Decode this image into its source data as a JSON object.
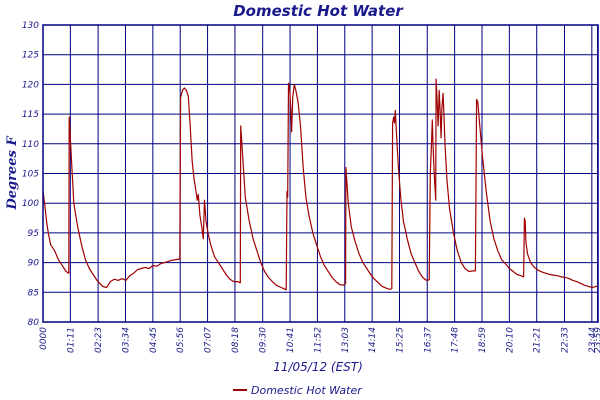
{
  "colors": {
    "series": "#a00000",
    "grid": "#000080",
    "text": "#1a1a8c"
  },
  "chart_data": {
    "type": "line",
    "title": "Domestic Hot Water",
    "xlabel": "11/05/12 (EST)",
    "ylabel": "Degrees F",
    "ylim": [
      80,
      130
    ],
    "yticks": [
      80,
      85,
      90,
      95,
      100,
      105,
      110,
      115,
      120,
      125,
      130
    ],
    "xlim": [
      "00:00",
      "24:00"
    ],
    "xtick_labels": [
      "0000",
      "01:11",
      "02:23",
      "03:34",
      "04:45",
      "05:56",
      "07:07",
      "08:18",
      "09:30",
      "10:41",
      "11:52",
      "13:03",
      "14:14",
      "15:25",
      "16:37",
      "17:48",
      "18:59",
      "20:10",
      "21:21",
      "22:33",
      "23:44",
      "23:59"
    ],
    "grid": true,
    "legend": "bottom-center",
    "series": [
      {
        "name": "Domestic Hot Water",
        "color": "#a00000",
        "points": [
          [
            "00:00",
            102
          ],
          [
            "00:05",
            99.5
          ],
          [
            "00:10",
            96.5
          ],
          [
            "00:15",
            94.5
          ],
          [
            "00:20",
            93
          ],
          [
            "00:30",
            92
          ],
          [
            "00:40",
            90.5
          ],
          [
            "00:50",
            89.5
          ],
          [
            "01:00",
            88.5
          ],
          [
            "01:07",
            88.2
          ],
          [
            "01:08",
            114.5
          ],
          [
            "01:10",
            112
          ],
          [
            "01:15",
            106
          ],
          [
            "01:20",
            100
          ],
          [
            "01:30",
            96
          ],
          [
            "01:40",
            93
          ],
          [
            "01:50",
            90.5
          ],
          [
            "02:00",
            89
          ],
          [
            "02:10",
            88
          ],
          [
            "02:20",
            87
          ],
          [
            "02:35",
            86
          ],
          [
            "02:45",
            85.8
          ],
          [
            "02:55",
            86.8
          ],
          [
            "03:05",
            87.2
          ],
          [
            "03:15",
            87
          ],
          [
            "03:25",
            87.3
          ],
          [
            "03:35",
            87
          ],
          [
            "03:45",
            87.8
          ],
          [
            "03:55",
            88.2
          ],
          [
            "04:05",
            88.8
          ],
          [
            "04:15",
            89
          ],
          [
            "04:25",
            89.2
          ],
          [
            "04:35",
            89
          ],
          [
            "04:45",
            89.5
          ],
          [
            "04:55",
            89.4
          ],
          [
            "05:05",
            89.8
          ],
          [
            "05:15",
            90
          ],
          [
            "05:25",
            90.2
          ],
          [
            "05:35",
            90.4
          ],
          [
            "05:45",
            90.5
          ],
          [
            "05:55",
            90.6
          ],
          [
            "05:57",
            117.8
          ],
          [
            "06:02",
            119
          ],
          [
            "06:07",
            119.4
          ],
          [
            "06:12",
            119
          ],
          [
            "06:17",
            118
          ],
          [
            "06:22",
            113
          ],
          [
            "06:27",
            107
          ],
          [
            "06:32",
            104
          ],
          [
            "06:37",
            102
          ],
          [
            "06:40",
            100.5
          ],
          [
            "06:43",
            101.5
          ],
          [
            "06:47",
            98
          ],
          [
            "06:52",
            96
          ],
          [
            "06:56",
            94
          ],
          [
            "06:59",
            100.5
          ],
          [
            "07:03",
            97
          ],
          [
            "07:08",
            95
          ],
          [
            "07:15",
            93
          ],
          [
            "07:25",
            91
          ],
          [
            "07:35",
            90
          ],
          [
            "07:45",
            89
          ],
          [
            "07:55",
            88
          ],
          [
            "08:05",
            87.2
          ],
          [
            "08:15",
            86.8
          ],
          [
            "08:25",
            86.8
          ],
          [
            "08:32",
            86.6
          ],
          [
            "08:33",
            113
          ],
          [
            "08:36",
            110
          ],
          [
            "08:40",
            106
          ],
          [
            "08:45",
            101
          ],
          [
            "08:55",
            97
          ],
          [
            "09:05",
            94
          ],
          [
            "09:15",
            92
          ],
          [
            "09:25",
            90
          ],
          [
            "09:35",
            88.5
          ],
          [
            "09:45",
            87.5
          ],
          [
            "09:55",
            86.8
          ],
          [
            "10:05",
            86.2
          ],
          [
            "10:15",
            85.9
          ],
          [
            "10:25",
            85.6
          ],
          [
            "10:31",
            85.4
          ],
          [
            "10:33",
            102
          ],
          [
            "10:35",
            101
          ],
          [
            "10:37",
            120.2
          ],
          [
            "10:40",
            119
          ],
          [
            "10:43",
            116
          ],
          [
            "10:45",
            112
          ],
          [
            "10:48",
            118
          ],
          [
            "10:52",
            120
          ],
          [
            "10:56",
            119
          ],
          [
            "11:02",
            117
          ],
          [
            "11:08",
            113
          ],
          [
            "11:15",
            106
          ],
          [
            "11:22",
            101
          ],
          [
            "11:30",
            98
          ],
          [
            "11:40",
            95
          ],
          [
            "11:50",
            93
          ],
          [
            "12:00",
            91
          ],
          [
            "12:10",
            89.5
          ],
          [
            "12:20",
            88.5
          ],
          [
            "12:30",
            87.5
          ],
          [
            "12:40",
            86.8
          ],
          [
            "12:50",
            86.3
          ],
          [
            "13:00",
            86.2
          ],
          [
            "13:05",
            86.5
          ],
          [
            "13:06",
            106
          ],
          [
            "13:08",
            104
          ],
          [
            "13:12",
            100
          ],
          [
            "13:20",
            96
          ],
          [
            "13:30",
            93.5
          ],
          [
            "13:40",
            91.5
          ],
          [
            "13:50",
            90
          ],
          [
            "14:00",
            89
          ],
          [
            "14:10",
            88
          ],
          [
            "14:20",
            87.2
          ],
          [
            "14:30",
            86.6
          ],
          [
            "14:40",
            86
          ],
          [
            "14:50",
            85.7
          ],
          [
            "15:00",
            85.5
          ],
          [
            "15:05",
            85.6
          ],
          [
            "15:07",
            113.5
          ],
          [
            "15:10",
            114.5
          ],
          [
            "15:12",
            113.5
          ],
          [
            "15:14",
            115.6
          ],
          [
            "15:17",
            112
          ],
          [
            "15:22",
            106
          ],
          [
            "15:28",
            101
          ],
          [
            "15:35",
            97
          ],
          [
            "15:45",
            94
          ],
          [
            "15:55",
            91.5
          ],
          [
            "16:05",
            90
          ],
          [
            "16:15",
            88.5
          ],
          [
            "16:25",
            87.5
          ],
          [
            "16:35",
            87
          ],
          [
            "16:42",
            87.1
          ],
          [
            "16:45",
            105
          ],
          [
            "16:48",
            110
          ],
          [
            "16:50",
            114
          ],
          [
            "16:52",
            110
          ],
          [
            "16:55",
            105
          ],
          [
            "16:59",
            100.5
          ],
          [
            "17:00",
            120.9
          ],
          [
            "17:02",
            118
          ],
          [
            "17:05",
            113
          ],
          [
            "17:08",
            119
          ],
          [
            "17:10",
            116
          ],
          [
            "17:13",
            111
          ],
          [
            "17:15",
            116
          ],
          [
            "17:18",
            118.5
          ],
          [
            "17:20",
            115.5
          ],
          [
            "17:23",
            110
          ],
          [
            "17:28",
            104
          ],
          [
            "17:35",
            99
          ],
          [
            "17:45",
            95
          ],
          [
            "17:55",
            92
          ],
          [
            "18:05",
            90
          ],
          [
            "18:15",
            89
          ],
          [
            "18:25",
            88.5
          ],
          [
            "18:35",
            88.6
          ],
          [
            "18:42",
            88.6
          ],
          [
            "18:45",
            117.5
          ],
          [
            "18:48",
            117
          ],
          [
            "18:52",
            114
          ],
          [
            "19:00",
            108
          ],
          [
            "19:10",
            102
          ],
          [
            "19:20",
            97
          ],
          [
            "19:30",
            94
          ],
          [
            "19:40",
            92
          ],
          [
            "19:50",
            90.5
          ],
          [
            "20:00",
            89.8
          ],
          [
            "20:10",
            89
          ],
          [
            "20:20",
            88.5
          ],
          [
            "20:30",
            88
          ],
          [
            "20:40",
            87.8
          ],
          [
            "20:47",
            87.6
          ],
          [
            "20:49",
            97.5
          ],
          [
            "20:51",
            97
          ],
          [
            "20:53",
            93.5
          ],
          [
            "20:57",
            91.5
          ],
          [
            "21:05",
            90
          ],
          [
            "21:15",
            89.2
          ],
          [
            "21:25",
            88.7
          ],
          [
            "21:35",
            88.4
          ],
          [
            "21:45",
            88.2
          ],
          [
            "21:55",
            88
          ],
          [
            "22:05",
            87.9
          ],
          [
            "22:15",
            87.8
          ],
          [
            "22:25",
            87.6
          ],
          [
            "22:35",
            87.5
          ],
          [
            "22:45",
            87.3
          ],
          [
            "22:55",
            87
          ],
          [
            "23:05",
            86.8
          ],
          [
            "23:15",
            86.5
          ],
          [
            "23:25",
            86.2
          ],
          [
            "23:35",
            86
          ],
          [
            "23:45",
            85.8
          ],
          [
            "23:55",
            86
          ],
          [
            "23:59",
            86.1
          ]
        ]
      }
    ]
  }
}
